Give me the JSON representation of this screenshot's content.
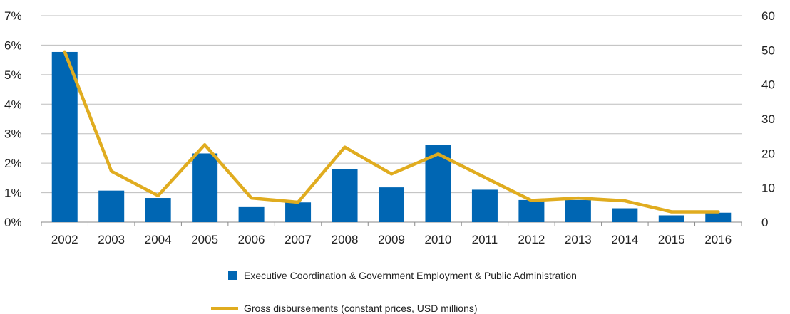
{
  "chart_data": {
    "type": "bar+line",
    "title": "",
    "categories": [
      "2002",
      "2003",
      "2004",
      "2005",
      "2006",
      "2007",
      "2008",
      "2009",
      "2010",
      "2011",
      "2012",
      "2013",
      "2014",
      "2015",
      "2016"
    ],
    "series": [
      {
        "name": "Executive Coordination & Government Employment & Public Administration",
        "type": "bar",
        "axis": "left",
        "color": "#0066b3",
        "values": [
          5.77,
          1.07,
          0.82,
          2.33,
          0.51,
          0.67,
          1.8,
          1.18,
          2.63,
          1.1,
          0.75,
          0.75,
          0.47,
          0.23,
          0.32
        ]
      },
      {
        "name": "Gross disbursements (constant prices, USD millions)",
        "type": "line",
        "axis": "right",
        "color": "#e0ac1f",
        "values": [
          49.5,
          14.8,
          7.7,
          22.5,
          7,
          5.8,
          21.8,
          14,
          19.8,
          13,
          6.3,
          7,
          6.2,
          3,
          3
        ]
      }
    ],
    "y_left": {
      "min": 0,
      "max": 7,
      "step": 1,
      "ticks": [
        "0%",
        "1%",
        "2%",
        "3%",
        "4%",
        "5%",
        "6%",
        "7%"
      ]
    },
    "y_right": {
      "min": 0,
      "max": 60,
      "step": 10,
      "ticks": [
        "0",
        "10",
        "20",
        "30",
        "40",
        "50",
        "60"
      ]
    },
    "grid": true,
    "legend_position": "bottom"
  }
}
